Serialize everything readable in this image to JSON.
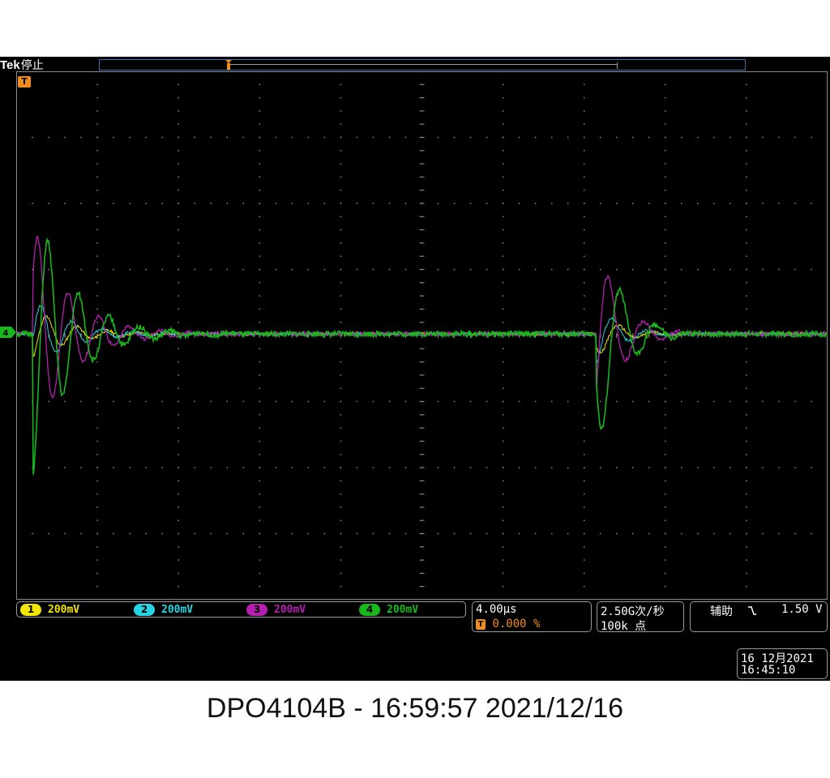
{
  "header": {
    "brand": "Tek",
    "run_status": "停止"
  },
  "trigger_position_marker": "T",
  "channel_marker": "4",
  "channels": [
    {
      "num": "1",
      "scale": "200mV",
      "color": "#f2e600"
    },
    {
      "num": "2",
      "scale": "200mV",
      "color": "#25d5e6"
    },
    {
      "num": "3",
      "scale": "200mV",
      "color": "#b51fb0"
    },
    {
      "num": "4",
      "scale": "200mV",
      "color": "#17b81b"
    }
  ],
  "timebase": {
    "scale": "4.00µs",
    "trigger_marker": "T",
    "trigger_position": "0.000 %"
  },
  "acquisition": {
    "sample_rate": "2.50G次/秒",
    "record_length": "100k 点"
  },
  "trigger": {
    "source": "辅助",
    "slope_icon": "falling-edge-icon",
    "level": "1.50 V"
  },
  "datetime": {
    "date": "16 12月2021",
    "time": "16:45:10"
  },
  "caption": "DPO4104B - 16:59:57   2021/12/16",
  "colors": {
    "background": "#000000",
    "graticule": "#8a8a8a",
    "accent_orange": "#f08c1c",
    "frame": "#9a9a9a"
  }
}
